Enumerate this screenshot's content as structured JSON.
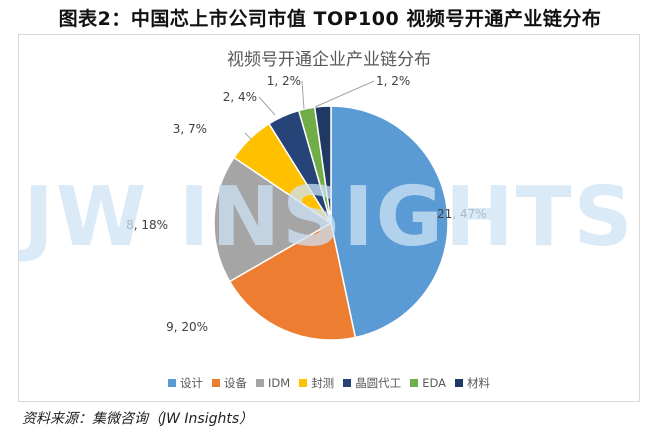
{
  "figure_title": "图表2：中国芯上市公司市值 TOP100 视频号开通产业链分布",
  "watermark": "JW INSIGHTS",
  "source_note": "资料来源：集微咨询（JW Insights）",
  "chart_data": {
    "type": "pie",
    "title": "视频号开通企业产业链分布",
    "legend_position": "bottom",
    "slices": [
      {
        "name": "设计",
        "value": 21,
        "percent": "47%",
        "label": "21, 47%",
        "color": "#5b9bd5"
      },
      {
        "name": "设备",
        "value": 9,
        "percent": "20%",
        "label": "9, 20%",
        "color": "#ed7d31"
      },
      {
        "name": "IDM",
        "value": 8,
        "percent": "18%",
        "label": "8, 18%",
        "color": "#a5a5a5"
      },
      {
        "name": "封测",
        "value": 3,
        "percent": "7%",
        "label": "3, 7%",
        "color": "#ffc000"
      },
      {
        "name": "晶圆代工",
        "value": 2,
        "percent": "4%",
        "label": "2, 4%",
        "color": "#264478"
      },
      {
        "name": "EDA",
        "value": 1,
        "percent": "2%",
        "label": "1, 2%",
        "color": "#70ad47"
      },
      {
        "name": "材料",
        "value": 1,
        "percent": "2%",
        "label": "1, 2%",
        "color": "#203864"
      }
    ]
  }
}
